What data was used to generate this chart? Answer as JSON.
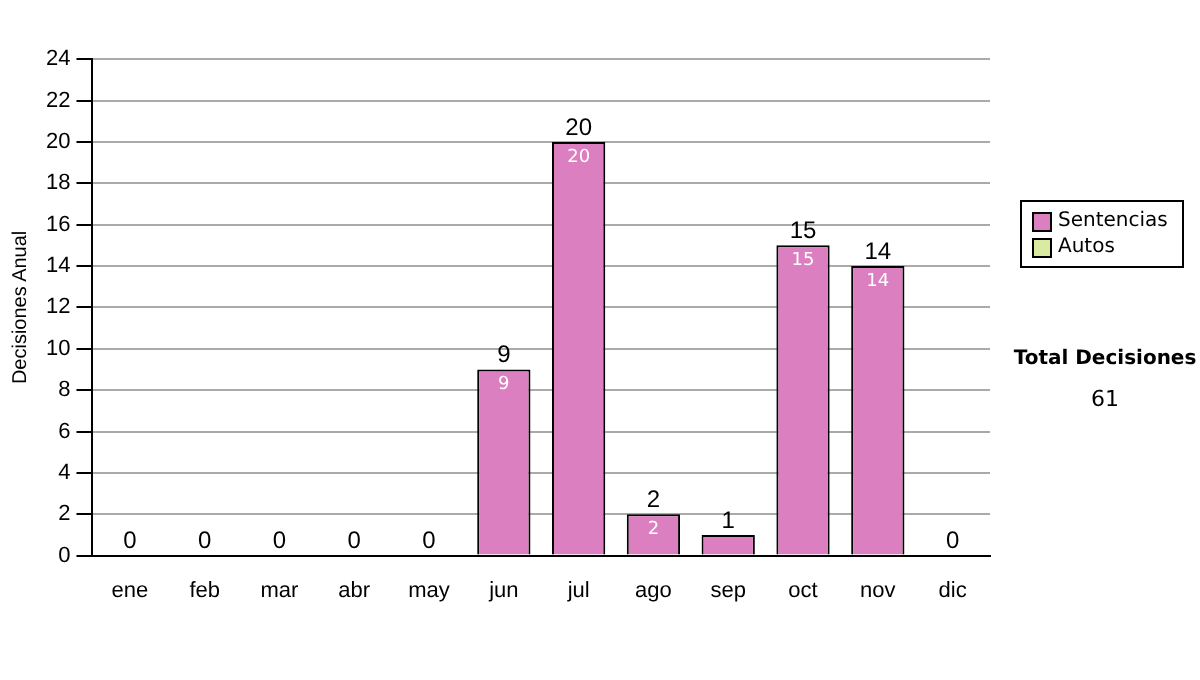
{
  "chart_data": {
    "type": "bar",
    "ylabel": "Decisiones Anual",
    "categories": [
      "ene",
      "feb",
      "mar",
      "abr",
      "may",
      "jun",
      "jul",
      "ago",
      "sep",
      "oct",
      "nov",
      "dic"
    ],
    "stacked": true,
    "series": [
      {
        "name": "Sentencias",
        "color": "#dc7fc0",
        "values": [
          0,
          0,
          0,
          0,
          0,
          9,
          20,
          2,
          1,
          15,
          14,
          0
        ],
        "value_labels": [
          null,
          null,
          null,
          null,
          null,
          "9",
          "20",
          "2",
          null,
          "15",
          "14",
          null
        ]
      },
      {
        "name": "Autos",
        "color": "#d9eba0",
        "values": [
          0,
          0,
          0,
          0,
          0,
          0,
          0,
          0,
          0,
          0,
          0,
          0
        ]
      }
    ],
    "totals": [
      "0",
      "0",
      "0",
      "0",
      "0",
      "9",
      "20",
      "2",
      "1",
      "15",
      "14",
      "0"
    ],
    "ylim": [
      0,
      24
    ],
    "yticks": [
      0,
      2,
      4,
      6,
      8,
      10,
      12,
      14,
      16,
      18,
      20,
      22,
      24
    ],
    "grid": "y",
    "legend": "right",
    "annotations": [
      "Total Decisiones",
      "61"
    ]
  }
}
